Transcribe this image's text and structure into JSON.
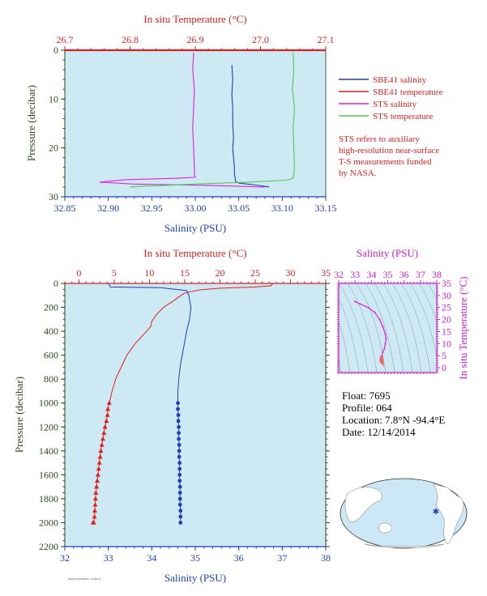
{
  "chart_data": [
    {
      "id": "top",
      "type": "line",
      "top_axis_label": "In situ Temperature (°C)",
      "bottom_axis_label": "Salinity (PSU)",
      "ylabel": "Pressure (decibar)",
      "temp_range": [
        26.7,
        27.1
      ],
      "temp_ticks": [
        "26.7",
        "26.8",
        "26.9",
        "27.0",
        "27.1"
      ],
      "sal_range": [
        32.85,
        33.15
      ],
      "sal_ticks": [
        "32.85",
        "32.90",
        "32.95",
        "33.00",
        "33.05",
        "33.10",
        "33.15"
      ],
      "ylim": [
        30,
        0
      ],
      "y_ticks": [
        "0",
        "10",
        "20",
        "30"
      ],
      "series": [
        {
          "name": "SBE41 salinity",
          "color": "#1f3fbf",
          "axis": "salinity",
          "x": [
            33.042,
            33.043,
            33.042,
            33.043,
            33.043,
            33.044,
            33.043,
            33.044,
            33.045,
            33.045,
            33.046,
            33.046,
            33.05,
            33.07,
            33.085
          ],
          "y": [
            3,
            6,
            9,
            12,
            15,
            18,
            20,
            22,
            24,
            25.5,
            26.2,
            26.8,
            27.2,
            27.6,
            28
          ]
        },
        {
          "name": "SBE41 temperature",
          "color": "#e02020",
          "axis": "temperature",
          "x": [
            26.7,
            26.8,
            26.9,
            27.0,
            27.1
          ],
          "y": [
            0,
            0,
            0,
            0,
            0
          ]
        },
        {
          "name": "STS salinity",
          "color": "#e020e0",
          "axis": "salinity",
          "x": [
            32.998,
            32.997,
            32.999,
            32.998,
            32.997,
            32.998,
            32.999,
            32.999,
            33.0,
            32.98,
            32.92,
            32.89,
            32.93,
            32.99,
            33.02,
            33.04,
            33.06,
            33.08
          ],
          "y": [
            0.5,
            4,
            8,
            12,
            16,
            20,
            24,
            25.5,
            26,
            26.2,
            26.5,
            27,
            27.4,
            27.6,
            27.7,
            27.8,
            27.9,
            28
          ]
        },
        {
          "name": "STS temperature",
          "color": "#50c850",
          "axis": "temperature",
          "x": [
            27.05,
            27.051,
            27.049,
            27.052,
            27.05,
            27.051,
            27.052,
            27.051,
            27.05,
            27.04,
            26.98,
            26.9,
            26.85,
            26.81,
            26.8
          ],
          "y": [
            0.5,
            4,
            8,
            12,
            16,
            20,
            24,
            25.5,
            26.2,
            26.6,
            27,
            27.4,
            27.7,
            27.9,
            28
          ]
        }
      ],
      "note": "STS refers to auxiliary high-resolution near-surface T-S measurements funded by NASA."
    },
    {
      "id": "bottom",
      "type": "line",
      "top_axis_label": "In situ Temperature (°C)",
      "bottom_axis_label": "Salinity (PSU)",
      "ylabel": "Pressure (decibar)",
      "temp_range": [
        -2,
        35
      ],
      "temp_ticks": [
        "0",
        "5",
        "10",
        "15",
        "20",
        "25",
        "30",
        "35"
      ],
      "sal_range": [
        32,
        38
      ],
      "sal_ticks": [
        "32",
        "33",
        "34",
        "35",
        "36",
        "37",
        "38"
      ],
      "ylim": [
        2200,
        0
      ],
      "y_ticks": [
        "0",
        "200",
        "400",
        "600",
        "800",
        "1000",
        "1200",
        "1400",
        "1600",
        "1800",
        "2000",
        "2200"
      ],
      "series": [
        {
          "name": "temperature",
          "color": "#e02020",
          "axis": "temperature",
          "x": [
            27.5,
            27.2,
            25,
            20,
            17,
            15,
            14,
            13.3,
            12,
            11,
            10.3,
            10.2,
            9.6,
            8,
            6.8,
            6,
            5.2,
            4.7,
            4.3
          ],
          "y": [
            0,
            20,
            30,
            40,
            55,
            80,
            120,
            150,
            200,
            260,
            320,
            360,
            400,
            500,
            600,
            700,
            800,
            900,
            1000
          ],
          "markers_x": [
            4.3,
            4.1,
            4.05,
            3.9,
            3.7,
            3.55,
            3.4,
            3.25,
            3.1,
            3.0,
            2.9,
            2.8,
            2.7,
            2.6,
            2.5,
            2.4,
            2.35,
            2.3,
            2.25,
            2.2,
            2.1,
            2.05,
            2.0
          ],
          "markers_y": [
            1000,
            1050,
            1100,
            1150,
            1200,
            1250,
            1300,
            1350,
            1400,
            1450,
            1500,
            1550,
            1600,
            1650,
            1700,
            1750,
            1800,
            1850,
            1900,
            1950,
            2000,
            2000,
            2000
          ]
        },
        {
          "name": "salinity",
          "color": "#1f3fbf",
          "axis": "salinity",
          "x": [
            33.0,
            33.05,
            34.2,
            34.8,
            34.85,
            34.9,
            34.87,
            34.8,
            34.75,
            34.7,
            34.65,
            34.62,
            34.6,
            34.6
          ],
          "y": [
            0,
            30,
            35,
            60,
            100,
            200,
            300,
            400,
            500,
            600,
            700,
            800,
            900,
            1000
          ],
          "markers_x": [
            34.6,
            34.6,
            34.61,
            34.61,
            34.62,
            34.62,
            34.62,
            34.63,
            34.63,
            34.63,
            34.64,
            34.64,
            34.64,
            34.64,
            34.65,
            34.65,
            34.65,
            34.65,
            34.66,
            34.66,
            34.66
          ],
          "markers_y": [
            1000,
            1050,
            1100,
            1150,
            1200,
            1250,
            1300,
            1350,
            1400,
            1450,
            1500,
            1550,
            1600,
            1650,
            1700,
            1750,
            1800,
            1850,
            1900,
            1950,
            2000
          ]
        }
      ]
    },
    {
      "id": "ts",
      "type": "scatter",
      "top_axis_label": "Salinity (PSU)",
      "right_axis_label": "In situ Temperature (°C)",
      "sal_range": [
        32,
        38
      ],
      "sal_ticks": [
        "32",
        "33",
        "34",
        "35",
        "36",
        "37",
        "38"
      ],
      "temp_range": [
        -2,
        35
      ],
      "temp_ticks": [
        "0",
        "5",
        "10",
        "15",
        "20",
        "25",
        "30",
        "35"
      ],
      "series": [
        {
          "name": "T-S",
          "color": "#e020e0",
          "x": [
            33.0,
            33.3,
            33.8,
            34.2,
            34.5,
            34.7,
            34.85,
            34.9,
            34.85,
            34.8,
            34.7,
            34.65,
            34.62,
            34.6
          ],
          "y": [
            27.5,
            26.5,
            25,
            23,
            20,
            17,
            14,
            12,
            10,
            8,
            6.5,
            5,
            4,
            3
          ]
        },
        {
          "name": "T-S deep",
          "color": "#f06060",
          "x": [
            34.6,
            34.61,
            34.62,
            34.63,
            34.64,
            34.65,
            34.66,
            34.6,
            34.58,
            34.62
          ],
          "y": [
            4.3,
            3.9,
            3.5,
            3.1,
            2.8,
            2.5,
            2.1,
            2.6,
            3.2,
            3.8
          ]
        }
      ]
    }
  ],
  "legend": [
    {
      "name": "SBE41 salinity",
      "color": "#1f3fbf"
    },
    {
      "name": "SBE41 temperature",
      "color": "#e02020"
    },
    {
      "name": "STS salinity",
      "color": "#e020e0"
    },
    {
      "name": "STS temperature",
      "color": "#50c850"
    }
  ],
  "note_lines": [
    "STS refers to auxiliary",
    "high-resolution near-surface",
    "T-S measurements funded",
    "by NASA."
  ],
  "info": {
    "float": "Float:  7695",
    "profile": "Profile:  064",
    "location": "Location:  7.8°N  -94.4°E",
    "date": "Date:  12/14/2014"
  },
  "footer_tiny": "NASA/UW/PMEL 12/06/14",
  "map": {
    "ocean_color": "#cce7f5",
    "land_color": "#ffffff",
    "marker_color": "#1f3fbf"
  },
  "colors": {
    "plot_bg": "#cde9f3",
    "red_axis": "#e02020",
    "blue_axis": "#1f3fbf",
    "green_axis": "#2a4a1a",
    "magenta_axis": "#d020d0"
  }
}
